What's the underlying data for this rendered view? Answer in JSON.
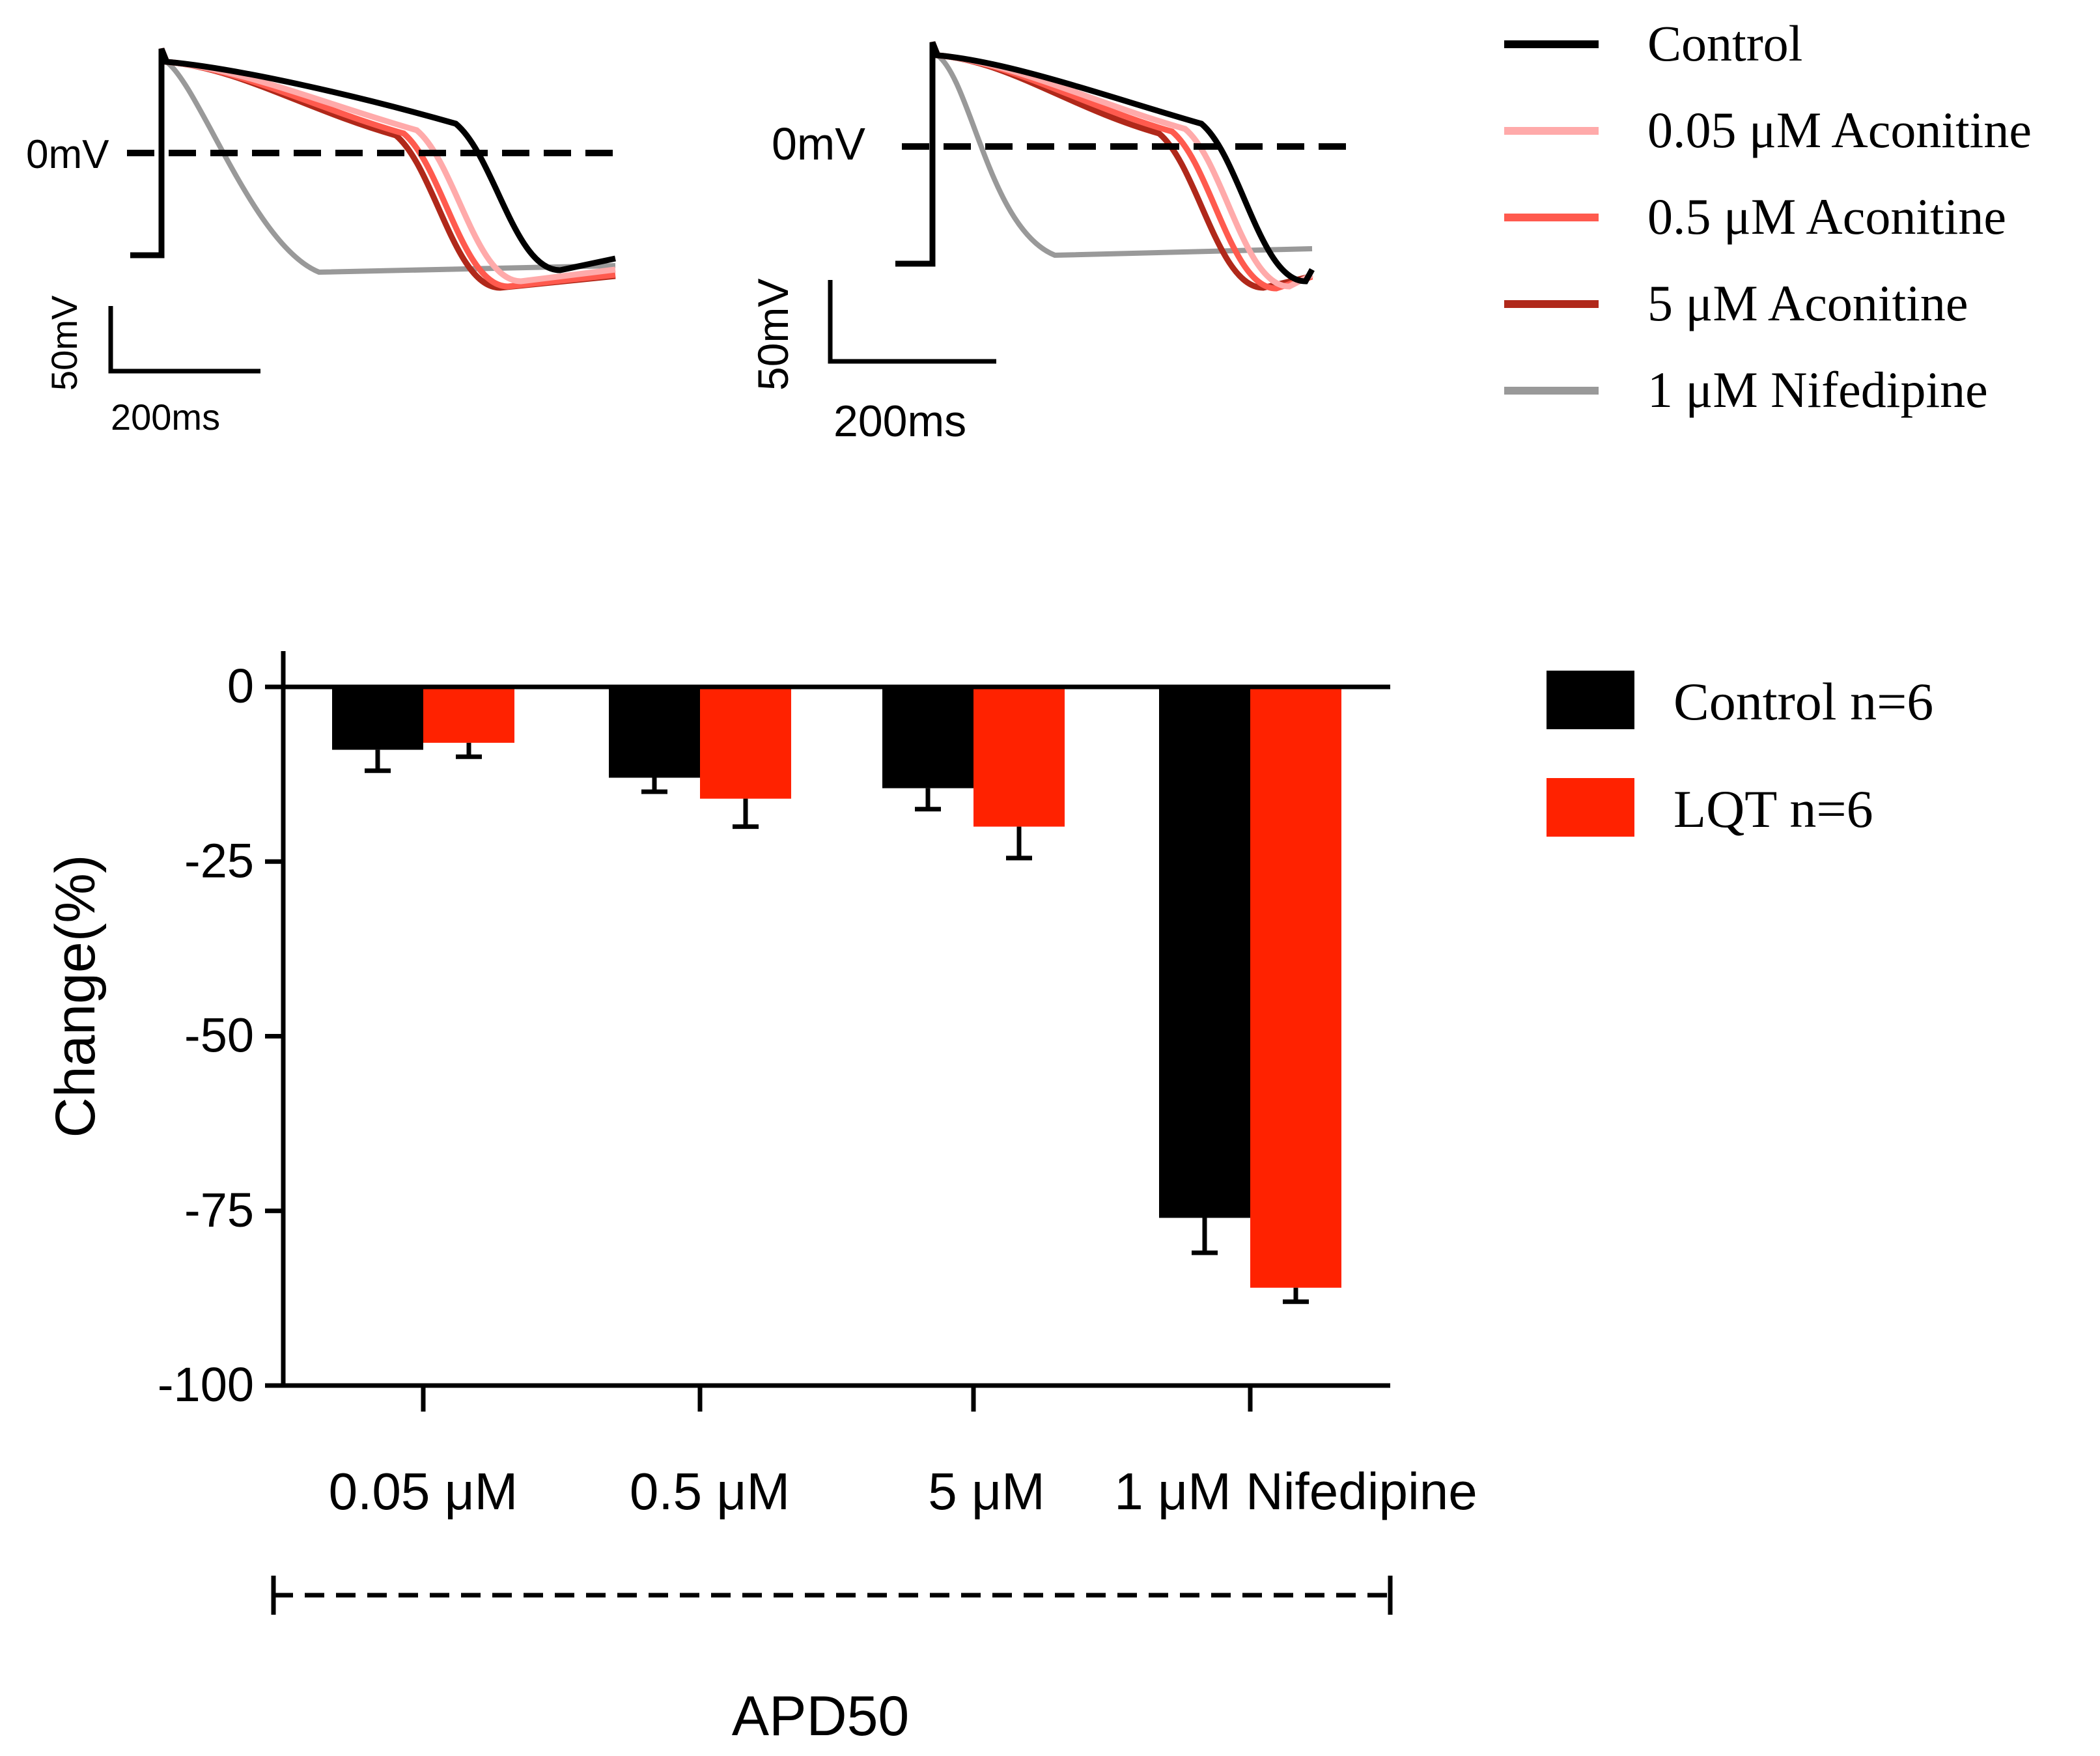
{
  "traces": {
    "panel_left": {
      "zero_label": "0mV",
      "scale_voltage_label": "50mV",
      "scale_time_label": "200ms"
    },
    "panel_right": {
      "zero_label": "0mV",
      "scale_voltage_label": "50mV",
      "scale_time_label": "200ms"
    },
    "legend": [
      {
        "label": "Control",
        "color": "#000000"
      },
      {
        "label": "0.05 μM  Aconitine",
        "color": "#ffaaaa"
      },
      {
        "label": "0.5 μM Aconitine",
        "color": "#ff5a4e"
      },
      {
        "label": "5 μM Aconitine",
        "color": "#b0281a"
      },
      {
        "label": "1 μM Nifedipine",
        "color": "#999999"
      }
    ]
  },
  "chart_data": {
    "type": "bar",
    "ylabel": "Change(%)",
    "xlabel": "APD50",
    "ylim": [
      -100,
      0
    ],
    "yticks": [
      0,
      -25,
      -50,
      -75,
      -100
    ],
    "categories": [
      "0.05 μM",
      "0.5 μM",
      "5 μM",
      "1 μM Nifedipine"
    ],
    "series": [
      {
        "name": "Control n=6",
        "color": "#000000",
        "values": [
          -9,
          -13,
          -14.5,
          -76
        ],
        "errors": [
          3,
          2,
          3,
          5
        ]
      },
      {
        "name": "LQT n=6",
        "color": "#ff2200",
        "values": [
          -8,
          -16,
          -20,
          -86
        ],
        "errors": [
          2,
          4,
          4.5,
          2
        ]
      }
    ]
  }
}
